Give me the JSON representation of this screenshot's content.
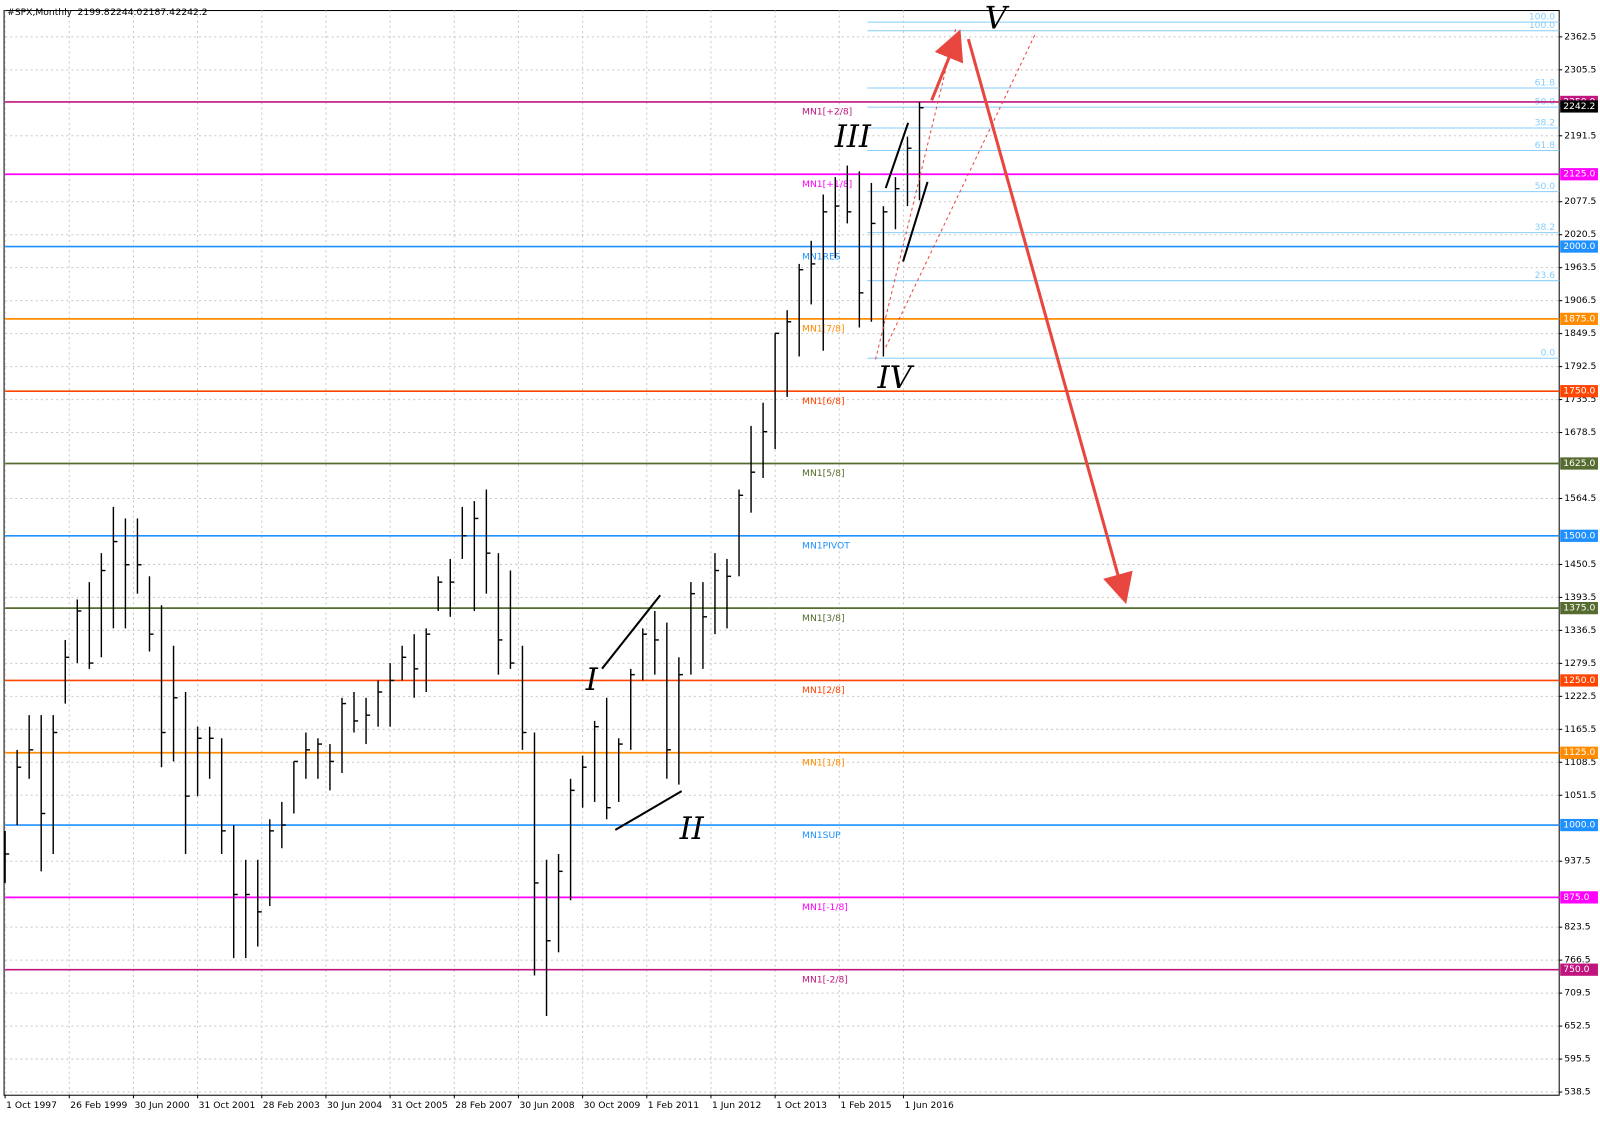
{
  "chart_data": {
    "type": "ohlc",
    "title": "#SPX,Monthly",
    "quote": [
      "2199.8",
      "2244.0",
      "2187.4",
      "2242.2"
    ],
    "last_price": {
      "value": 2242.2,
      "label": "2242.2"
    },
    "xlim": [
      0,
      387.5
    ],
    "ylim": [
      533,
      2408
    ],
    "grid": true,
    "xticks": [
      {
        "value": 0,
        "label": "1 Oct 1997"
      },
      {
        "value": 16,
        "label": "26 Feb 1999"
      },
      {
        "value": 32,
        "label": "30 Jun 2000"
      },
      {
        "value": 48,
        "label": "31 Oct 2001"
      },
      {
        "value": 64,
        "label": "28 Feb 2003"
      },
      {
        "value": 80,
        "label": "30 Jun 2004"
      },
      {
        "value": 96,
        "label": "31 Oct 2005"
      },
      {
        "value": 112,
        "label": "28 Feb 2007"
      },
      {
        "value": 128,
        "label": "30 Jun 2008"
      },
      {
        "value": 144,
        "label": "30 Oct 2009"
      },
      {
        "value": 160,
        "label": "1 Feb 2011"
      },
      {
        "value": 176,
        "label": "1 Jun 2012"
      },
      {
        "value": 192,
        "label": "1 Oct 2013"
      },
      {
        "value": 208,
        "label": "1 Feb 2015"
      },
      {
        "value": 224,
        "label": "1 Jun 2016"
      }
    ],
    "yticks": [
      2362.5,
      2305.5,
      2191.5,
      2077.5,
      2020.5,
      1963.5,
      1906.5,
      1849.5,
      1792.5,
      1735.5,
      1678.5,
      1564.5,
      1450.5,
      1393.5,
      1336.5,
      1279.5,
      1222.5,
      1165.5,
      1108.5,
      1051.5,
      937.5,
      823.5,
      766.5,
      709.5,
      652.5,
      595.5,
      538.5
    ],
    "color": "#000000",
    "x": [
      0,
      3,
      6,
      9,
      12,
      15,
      18,
      21,
      24,
      27,
      30,
      33,
      36,
      39,
      42,
      45,
      48,
      51,
      54,
      57,
      60,
      63,
      66,
      69,
      72,
      75,
      78,
      81,
      84,
      87,
      90,
      93,
      96,
      99,
      102,
      105,
      108,
      111,
      114,
      117,
      120,
      123,
      126,
      129,
      132,
      135,
      138,
      141,
      144,
      147,
      150,
      153,
      156,
      159,
      162,
      165,
      168,
      171,
      174,
      177,
      180,
      183,
      186,
      189,
      192,
      195,
      198,
      201,
      204,
      207,
      210,
      213,
      216,
      219,
      222,
      225,
      228
    ],
    "high": [
      990,
      1130,
      1190,
      1190,
      1190,
      1320,
      1390,
      1420,
      1470,
      1550,
      1530,
      1530,
      1430,
      1380,
      1310,
      1230,
      1170,
      1170,
      1150,
      1000,
      940,
      940,
      1010,
      1040,
      1110,
      1160,
      1150,
      1140,
      1220,
      1230,
      1220,
      1250,
      1280,
      1310,
      1330,
      1340,
      1430,
      1460,
      1550,
      1560,
      1580,
      1470,
      1440,
      1310,
      1160,
      940,
      950,
      1080,
      1120,
      1180,
      1220,
      1150,
      1270,
      1340,
      1370,
      1350,
      1290,
      1420,
      1420,
      1470,
      1460,
      1580,
      1690,
      1730,
      1850,
      1890,
      1970,
      2010,
      2090,
      2120,
      2140,
      2130,
      2110,
      2070,
      2120,
      2190,
      2250
    ],
    "low": [
      900,
      1000,
      1080,
      920,
      950,
      1210,
      1280,
      1270,
      1290,
      1340,
      1340,
      1400,
      1300,
      1100,
      1110,
      950,
      1050,
      1080,
      950,
      770,
      770,
      790,
      860,
      960,
      1020,
      1080,
      1080,
      1060,
      1090,
      1160,
      1140,
      1170,
      1170,
      1250,
      1220,
      1230,
      1370,
      1360,
      1460,
      1370,
      1400,
      1260,
      1270,
      1130,
      740,
      670,
      780,
      870,
      1030,
      1040,
      1010,
      1040,
      1130,
      1250,
      1260,
      1080,
      1070,
      1260,
      1270,
      1330,
      1340,
      1430,
      1540,
      1600,
      1650,
      1740,
      1810,
      1900,
      1820,
      1980,
      2040,
      1860,
      1870,
      1810,
      2030,
      2070,
      2080
    ],
    "close": [
      950,
      1100,
      1130,
      1020,
      1160,
      1290,
      1370,
      1280,
      1440,
      1490,
      1450,
      1450,
      1330,
      1160,
      1220,
      1050,
      1150,
      1150,
      990,
      880,
      880,
      850,
      990,
      1000,
      1110,
      1130,
      1140,
      1110,
      1210,
      1180,
      1190,
      1230,
      1250,
      1290,
      1270,
      1330,
      1420,
      1420,
      1500,
      1530,
      1470,
      1320,
      1280,
      1160,
      900,
      800,
      920,
      1060,
      1100,
      1170,
      1030,
      1140,
      1260,
      1330,
      1320,
      1130,
      1260,
      1400,
      1360,
      1440,
      1430,
      1570,
      1610,
      1680,
      1850,
      1870,
      1960,
      1970,
      2060,
      2070,
      2060,
      1920,
      2040,
      2060,
      2100,
      2170,
      2240
    ],
    "levels": [
      {
        "name": "MN1[+2/8]",
        "value": 2250,
        "label": "2250.0",
        "color": "#c0157f"
      },
      {
        "name": "MN1[+1/8]",
        "value": 2125,
        "label": "2125.0",
        "color": "#ff00ff"
      },
      {
        "name": "MN1RES",
        "value": 2000,
        "label": "2000.0",
        "color": "#1e90ff"
      },
      {
        "name": "MN1[7/8]",
        "value": 1875,
        "label": "1875.0",
        "color": "#ff8c00"
      },
      {
        "name": "MN1[6/8]",
        "value": 1750,
        "label": "1750.0",
        "color": "#ff4500"
      },
      {
        "name": "MN1[5/8]",
        "value": 1625,
        "label": "1625.0",
        "color": "#556b2f"
      },
      {
        "name": "MN1PIVOT",
        "value": 1500,
        "label": "1500.0",
        "color": "#1e90ff"
      },
      {
        "name": "MN1[3/8]",
        "value": 1375,
        "label": "1375.0",
        "color": "#556b2f"
      },
      {
        "name": "MN1[2/8]",
        "value": 1250,
        "label": "1250.0",
        "color": "#ff4500"
      },
      {
        "name": "MN1[1/8]",
        "value": 1125,
        "label": "1125.0",
        "color": "#ff8c00"
      },
      {
        "name": "MN1SUP",
        "value": 1000,
        "label": "1000.0",
        "color": "#1e90ff"
      },
      {
        "name": "MN1[-1/8]",
        "value": 875,
        "label": "875.0",
        "color": "#ff00ff"
      },
      {
        "name": "MN1[-2/8]",
        "value": 750,
        "label": "750.0",
        "color": "#c0157f"
      }
    ],
    "fib_color": "#87cefa",
    "fib": [
      {
        "label": "100.0",
        "value": 2388
      },
      {
        "label": "100.0",
        "value": 2373
      },
      {
        "label": "61.8",
        "value": 2274
      },
      {
        "label": "50.0",
        "value": 2241
      },
      {
        "label": "38.2",
        "value": 2205
      },
      {
        "label": "61.8",
        "value": 2166
      },
      {
        "label": "50.0",
        "value": 2095
      },
      {
        "label": "38.2",
        "value": 2024
      },
      {
        "label": "23.6",
        "value": 1941
      },
      {
        "label": "0.0",
        "value": 1807
      }
    ],
    "annotations": [
      "I",
      "II",
      "III",
      "IV",
      "V"
    ]
  }
}
